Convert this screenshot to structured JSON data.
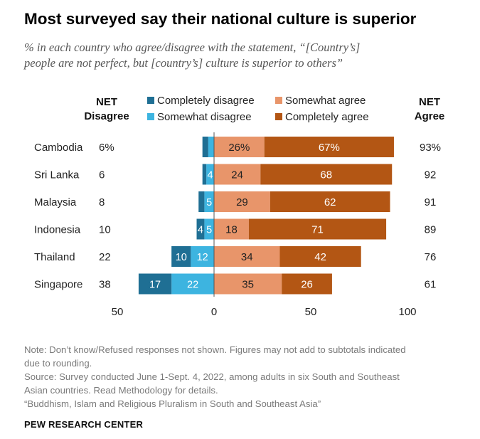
{
  "title": "Most surveyed say their national culture is superior",
  "subtitle_line1": "% in each country who agree/disagree with the statement, “[Country’s]",
  "subtitle_line2": "people are not perfect, but [country’s] culture is superior to others”",
  "net_disagree_header": [
    "NET",
    "Disagree"
  ],
  "net_agree_header": [
    "NET",
    "Agree"
  ],
  "legend": [
    {
      "label": "Completely disagree",
      "color": "#1f6f94"
    },
    {
      "label": "Somewhat agree",
      "color": "#e8956a"
    },
    {
      "label": "Somewhat disagree",
      "color": "#3db4e0"
    },
    {
      "label": "Completely agree",
      "color": "#b35614"
    }
  ],
  "chart_data": {
    "type": "bar",
    "orientation": "horizontal-diverging",
    "categories": [
      "Cambodia",
      "Sri Lanka",
      "Malaysia",
      "Indonesia",
      "Thailand",
      "Singapore"
    ],
    "series": [
      {
        "name": "Completely disagree",
        "color": "#1f6f94",
        "values": [
          3,
          2,
          3,
          4,
          10,
          17
        ],
        "labels": [
          "",
          "",
          "",
          "4",
          "10",
          "17"
        ]
      },
      {
        "name": "Somewhat disagree",
        "color": "#3db4e0",
        "values": [
          3,
          4,
          5,
          5,
          12,
          22
        ],
        "labels": [
          "",
          "4",
          "5",
          "5",
          "12",
          "22"
        ]
      },
      {
        "name": "Somewhat agree",
        "color": "#e8956a",
        "values": [
          26,
          24,
          29,
          18,
          34,
          35
        ],
        "labels": [
          "26%",
          "24",
          "29",
          "18",
          "34",
          "35"
        ]
      },
      {
        "name": "Completely agree",
        "color": "#b35614",
        "values": [
          67,
          68,
          62,
          71,
          42,
          26
        ],
        "labels": [
          "67%",
          "68",
          "62",
          "71",
          "42",
          "26"
        ]
      }
    ],
    "net_disagree": [
      "6%",
      "6",
      "8",
      "10",
      "22",
      "38"
    ],
    "net_agree": [
      "93%",
      "92",
      "91",
      "89",
      "76",
      "61"
    ],
    "x_ticks": [
      "50",
      "0",
      "50",
      "100"
    ],
    "xlim": [
      -50,
      100
    ]
  },
  "notes": [
    "Note: Don’t know/Refused responses not shown. Figures may not add to subtotals indicated",
    "due to rounding.",
    "Source: Survey conducted June 1-Sept. 4, 2022, among adults in six South and Southeast",
    "Asian countries. Read Methodology for details.",
    "“Buddhism, Islam and Religious Pluralism in South and Southeast Asia”"
  ],
  "source_org": "PEW RESEARCH CENTER"
}
